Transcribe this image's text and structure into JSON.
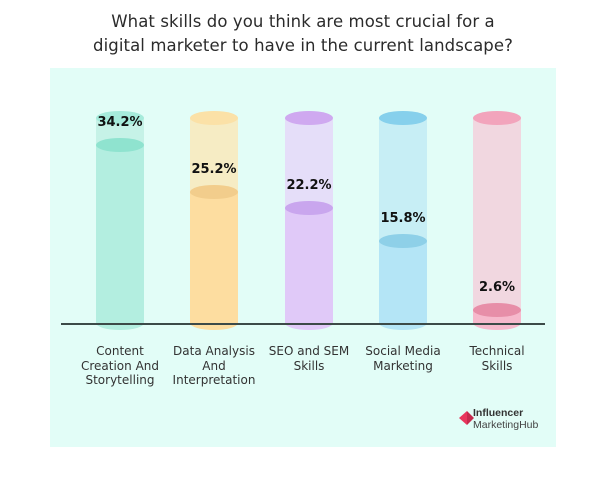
{
  "chart_data": {
    "type": "bar",
    "title": "What skills do you think are most crucial for a digital marketer to have in the current landscape?",
    "categories": [
      "Content Creation And Storytelling",
      "Data Analysis And Interpretation",
      "SEO and SEM Skills",
      "Social Media Marketing",
      "Technical Skills"
    ],
    "values": [
      34.2,
      25.2,
      22.2,
      15.8,
      2.6
    ],
    "value_labels": [
      "34.2%",
      "25.2%",
      "22.2%",
      "15.8%",
      "2.6%"
    ],
    "xlabel": "",
    "ylabel": "",
    "ylim": [
      0,
      50
    ],
    "grid": false,
    "legend": null,
    "style": "3d-cylinder"
  },
  "header": {
    "title_line1": "What skills do you think are most crucial for a",
    "title_line2": "digital marketer to have in the current landscape?"
  },
  "bars": [
    {
      "label_lines": [
        "Content",
        "Creation And",
        "Storytelling"
      ],
      "value": "34.2%",
      "fill": "#b3eee0",
      "cap": "#8fe3cf",
      "ghost": "#c6f2e7",
      "topcap": "#a6ebdb"
    },
    {
      "label_lines": [
        "Data Analysis",
        "And",
        "Interpretation"
      ],
      "value": "25.2%",
      "fill": "#fddda0",
      "cap": "#f2cd8c",
      "ghost": "#f6ecc4",
      "topcap": "#fbe1a7"
    },
    {
      "label_lines": [
        "SEO and SEM",
        "Skills"
      ],
      "value": "22.2%",
      "fill": "#e0c9f8",
      "cap": "#c9a6ee",
      "ghost": "#e5def9",
      "topcap": "#cfa9f0"
    },
    {
      "label_lines": [
        "Social Media",
        "Marketing"
      ],
      "value": "15.8%",
      "fill": "#b4e5f6",
      "cap": "#8ed0e8",
      "ghost": "#c7eef5",
      "topcap": "#86d0ec"
    },
    {
      "label_lines": [
        "Technical",
        "Skills"
      ],
      "value": "2.6%",
      "fill": "#f6b9cc",
      "cap": "#e78ea8",
      "ghost": "#f1d7e0",
      "topcap": "#f2a4bc"
    }
  ],
  "branding": {
    "line1": "Influencer",
    "line2": "MarketingHub",
    "accent": "#e8365d"
  }
}
